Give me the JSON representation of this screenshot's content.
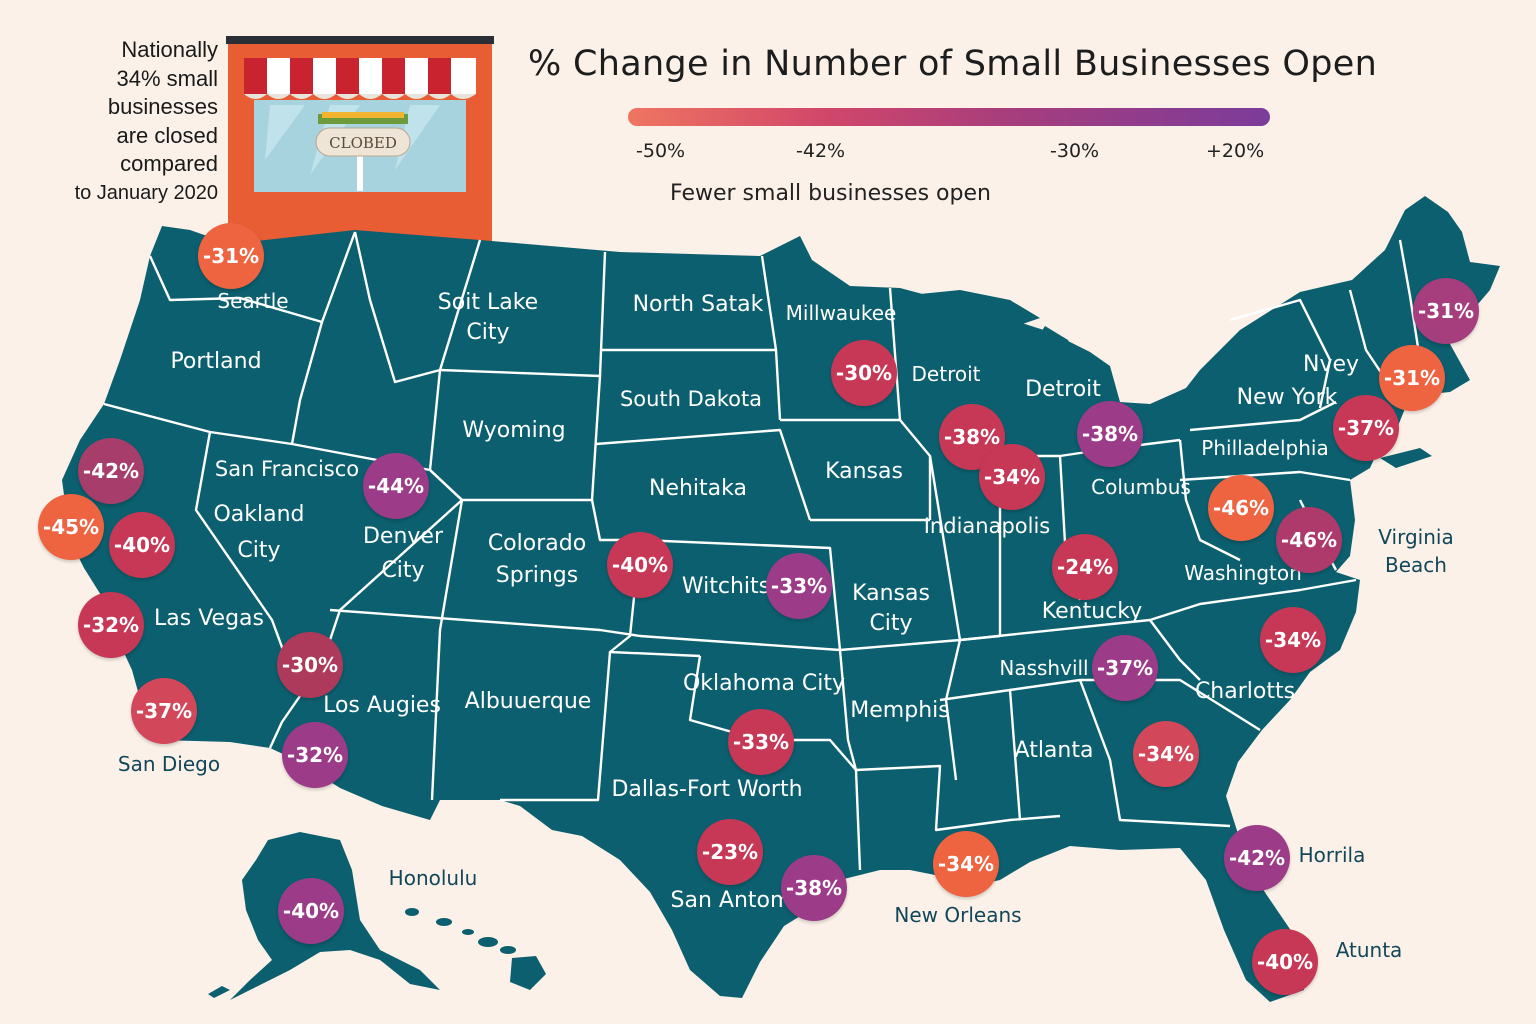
{
  "title": "% Change in Number of Small Businesses Open",
  "national_note": [
    "Nationally",
    "34% small",
    "businesses",
    "are closed",
    "compared",
    "to January 2020"
  ],
  "store_sign": "CLOBED",
  "legend": {
    "ticks": [
      "-50%",
      "-42%",
      "-30%",
      "+20%"
    ],
    "caption": "Fewer small businesses open",
    "colors": [
      "#ef7560",
      "#d2476a",
      "#a63d7d",
      "#7b3c9a"
    ]
  },
  "colors": {
    "background": "#fbf1e8",
    "land": "#0b5f6e",
    "border": "#ffffff",
    "store": "#e85d33",
    "bubble_orange": "#ee6340",
    "bubble_red": "#c73756",
    "bubble_maroon": "#ad3a5b",
    "bubble_purple": "#9c3c88"
  },
  "labels": [
    {
      "text": "Seartle"
    },
    {
      "text": "Portland"
    },
    {
      "text": "Soit Lake\nCity"
    },
    {
      "text": "North Satak"
    },
    {
      "text": "Millwaukee"
    },
    {
      "text": "Detroit"
    },
    {
      "text": "Detroit"
    },
    {
      "text": "Nvey"
    },
    {
      "text": "New York"
    },
    {
      "text": "South Dakota"
    },
    {
      "text": "Wyoming"
    },
    {
      "text": "San Francisco"
    },
    {
      "text": "Oakland\nCity"
    },
    {
      "text": "Denver\nCity"
    },
    {
      "text": "Colorado\nSprings"
    },
    {
      "text": "Nehitaka"
    },
    {
      "text": "Kansas"
    },
    {
      "text": "Indianapolis"
    },
    {
      "text": "Columbus"
    },
    {
      "text": "Philladelphia"
    },
    {
      "text": "Virginia\nBeach"
    },
    {
      "text": "Washington"
    },
    {
      "text": "Witchits"
    },
    {
      "text": "Kansas\nCity"
    },
    {
      "text": "Kentucky"
    },
    {
      "text": "Las Vegas"
    },
    {
      "text": "Los Augies"
    },
    {
      "text": "Albuuerque"
    },
    {
      "text": "Oklahoma City"
    },
    {
      "text": "Memphis"
    },
    {
      "text": "Nasshvill"
    },
    {
      "text": "Charlotts"
    },
    {
      "text": "Atlanta"
    },
    {
      "text": "San Diego"
    },
    {
      "text": "Dallas-Fort Worth"
    },
    {
      "text": "Honolulu"
    },
    {
      "text": "San Antom"
    },
    {
      "text": "New Orleans"
    },
    {
      "text": "Horrila"
    },
    {
      "text": "Atunta"
    }
  ],
  "bubbles": [
    {
      "value": "-31%",
      "color": "#ee6340"
    },
    {
      "value": "-31%",
      "color": "#a63d7d"
    },
    {
      "value": "-31%",
      "color": "#ee6340"
    },
    {
      "value": "-30%",
      "color": "#c73756"
    },
    {
      "value": "-38%",
      "color": "#c73756"
    },
    {
      "value": "-34%",
      "color": "#c73756"
    },
    {
      "value": "-38%",
      "color": "#9c3c88"
    },
    {
      "value": "-37%",
      "color": "#c73756"
    },
    {
      "value": "-42%",
      "color": "#a63d6a"
    },
    {
      "value": "-45%",
      "color": "#ee6340"
    },
    {
      "value": "-40%",
      "color": "#c73756"
    },
    {
      "value": "-44%",
      "color": "#9c3c88"
    },
    {
      "value": "-46%",
      "color": "#ee6340"
    },
    {
      "value": "-46%",
      "color": "#ad3a6b"
    },
    {
      "value": "-40%",
      "color": "#c73756"
    },
    {
      "value": "-33%",
      "color": "#9c3c88"
    },
    {
      "value": "-24%",
      "color": "#c73756"
    },
    {
      "value": "-32%",
      "color": "#c73756"
    },
    {
      "value": "-30%",
      "color": "#ad3a5b"
    },
    {
      "value": "-37%",
      "color": "#9c3c88"
    },
    {
      "value": "-34%",
      "color": "#c73756"
    },
    {
      "value": "-37%",
      "color": "#d2475a"
    },
    {
      "value": "-32%",
      "color": "#9c3c88"
    },
    {
      "value": "-33%",
      "color": "#c73756"
    },
    {
      "value": "-34%",
      "color": "#d2475a"
    },
    {
      "value": "-23%",
      "color": "#c73756"
    },
    {
      "value": "-38%",
      "color": "#9c3c88"
    },
    {
      "value": "-34%",
      "color": "#ee6340"
    },
    {
      "value": "-42%",
      "color": "#9c3c88"
    },
    {
      "value": "-40%",
      "color": "#9c3c88"
    },
    {
      "value": "-40%",
      "color": "#c73756"
    }
  ]
}
